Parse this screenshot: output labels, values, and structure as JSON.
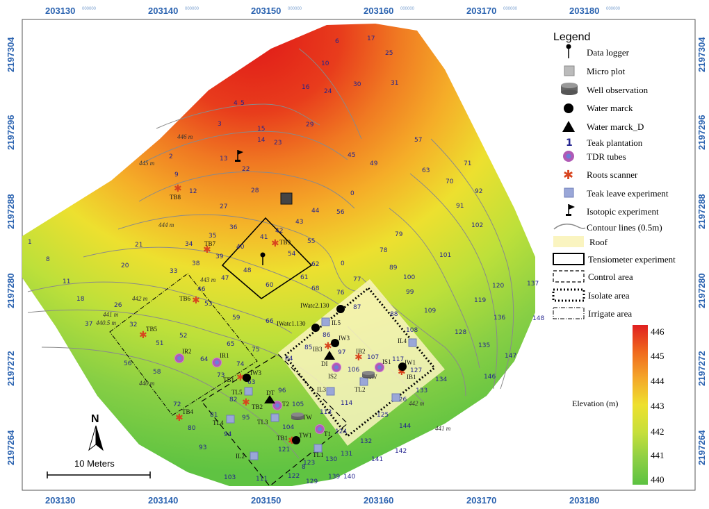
{
  "axes": {
    "x_ticks": [
      "203130",
      "203140",
      "203150",
      "203160",
      "203170",
      "203180"
    ],
    "x_tick_suffix": "000000",
    "y_ticks": [
      "2197304",
      "2197296",
      "2197288",
      "2197280",
      "2197272",
      "2197264"
    ],
    "y_tick_suffix": "000000"
  },
  "legend": {
    "title": "Legend",
    "items": [
      {
        "icon": "data-logger-icon",
        "label": "Data logger"
      },
      {
        "icon": "micro-plot-icon",
        "label": "Micro plot"
      },
      {
        "icon": "well-observation-icon",
        "label": "Well observation"
      },
      {
        "icon": "water-marck-icon",
        "label": "Water marck"
      },
      {
        "icon": "water-marck-d-icon",
        "label": "Water marck_D"
      },
      {
        "icon": "teak-plantation-icon",
        "label": "Teak plantation",
        "symbol": "1"
      },
      {
        "icon": "tdr-tube-icon",
        "label": "TDR tubes"
      },
      {
        "icon": "roots-scanner-icon",
        "label": "Roots scanner"
      },
      {
        "icon": "teak-leave-icon",
        "label": "Teak leave experiment"
      },
      {
        "icon": "isotopic-experiment-icon",
        "label": "Isotopic experiment"
      },
      {
        "icon": "contour-line-icon",
        "label": "Contour lines (0.5m)"
      },
      {
        "icon": "roof-icon",
        "label": "Roof"
      },
      {
        "icon": "tensiometer-icon",
        "label": "Tensiometer experiment"
      },
      {
        "icon": "control-area-icon",
        "label": "Control area"
      },
      {
        "icon": "isolate-area-icon",
        "label": "Isolate area"
      },
      {
        "icon": "irrigate-area-icon",
        "label": "Irrigate area"
      }
    ]
  },
  "elevation_scale": {
    "title": "Elevation (m)",
    "labels": [
      "446",
      "445",
      "444",
      "443",
      "442",
      "441",
      "440"
    ],
    "colors": [
      "#e02020",
      "#f06a1e",
      "#f4a62a",
      "#eee02e",
      "#c7df3a",
      "#8fd044",
      "#5cc242"
    ]
  },
  "contour_labels": [
    "446 m",
    "445 m",
    "444 m",
    "443 m",
    "442 m",
    "441 m",
    "440.5 m",
    "442 m",
    "441 m",
    "440 m"
  ],
  "north_arrow": "N",
  "scale_bar": "10 Meters",
  "trees": [
    "6",
    "17",
    "25",
    "10",
    "16",
    "24",
    "30",
    "31",
    "4",
    "5",
    "3",
    "15",
    "29",
    "14",
    "23",
    "57",
    "2",
    "13",
    "22",
    "45",
    "49",
    "63",
    "71",
    "9",
    "12",
    "28",
    "0",
    "70",
    "92",
    "27",
    "44",
    "56",
    "91",
    "43",
    "42",
    "55",
    "54",
    "102",
    "1",
    "21",
    "34",
    "36",
    "35",
    "41",
    "40",
    "79",
    "8",
    "39",
    "48",
    "78",
    "101",
    "20",
    "33",
    "38",
    "62",
    "0",
    "89",
    "11",
    "47",
    "60",
    "61",
    "100",
    "120",
    "137",
    "18",
    "46",
    "53",
    "68",
    "76",
    "77",
    "87",
    "99",
    "119",
    "26",
    "88",
    "109",
    "136",
    "148",
    "37",
    "32",
    "59",
    "66",
    "86",
    "108",
    "128",
    "52",
    "65",
    "85",
    "97",
    "117",
    "135",
    "147",
    "51",
    "75",
    "84",
    "107",
    "106",
    "127",
    "134",
    "64",
    "74",
    "73",
    "63",
    "96",
    "105",
    "114",
    "133",
    "146",
    "56",
    "58",
    "82",
    "95",
    "113",
    "125",
    "144",
    "72",
    "81",
    "94",
    "104",
    "124",
    "132",
    "142",
    "80",
    "93",
    "121",
    "123",
    "131",
    "141",
    "103",
    "111",
    "122",
    "129",
    "130",
    "139",
    "140",
    "126",
    "8"
  ],
  "features": {
    "tb": [
      "TB8",
      "TB7",
      "TB9",
      "TB6",
      "TB5",
      "TB1",
      "TB2",
      "TB4",
      "TB1",
      "TB3",
      "IB3",
      "IB2",
      "IB1"
    ],
    "ir": [
      "IR2",
      "IR1",
      "IS2",
      "IS1",
      "T2",
      "T1"
    ],
    "tl": [
      "TL5",
      "TL4",
      "TL3",
      "TL2",
      "TL1",
      "IL5",
      "IL4",
      "IL3",
      "IL2",
      "IL1"
    ],
    "other": [
      "IWatc2.130",
      "IWatc1.130",
      "IW3",
      "IW1",
      "IW",
      "TW",
      "TW1",
      "DI",
      "DT",
      "IW3"
    ]
  }
}
